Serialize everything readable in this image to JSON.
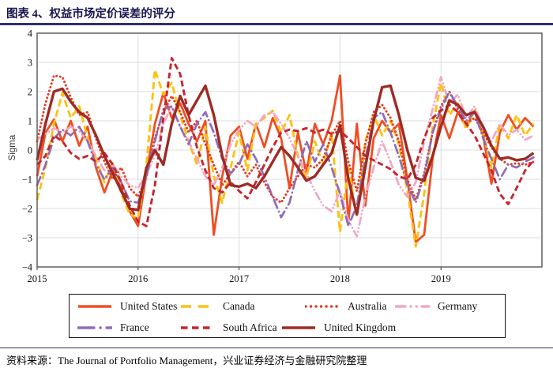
{
  "header": {
    "title": "图表 4、权益市场定价误差的评分"
  },
  "source": {
    "text": "资料来源：The Journal of Portfolio Management，兴业证券经济与金融研究院整理"
  },
  "chart_data": {
    "type": "line",
    "title": "图表 4、权益市场定价误差的评分",
    "xlabel": "",
    "ylabel": "Sigma",
    "ylim": [
      -4,
      4
    ],
    "grid": true,
    "legend_position": "bottom",
    "x_range": [
      2015,
      2020
    ],
    "points_per_year": 12,
    "x_start_year": 2015,
    "y_ticks": [
      {
        "value": 4,
        "label": "4"
      },
      {
        "value": 3,
        "label": "3"
      },
      {
        "value": 2,
        "label": "2"
      },
      {
        "value": 1,
        "label": "1"
      },
      {
        "value": 0,
        "label": "0"
      },
      {
        "value": -1,
        "label": "−1"
      },
      {
        "value": -2,
        "label": "−2"
      },
      {
        "value": -3,
        "label": "−3"
      },
      {
        "value": -4,
        "label": "−4"
      }
    ],
    "x_ticks": [
      {
        "value": 2015,
        "label": "2015"
      },
      {
        "value": 2016,
        "label": "2016"
      },
      {
        "value": 2017,
        "label": "2017"
      },
      {
        "value": 2018,
        "label": "2018"
      },
      {
        "value": 2019,
        "label": "2019"
      }
    ],
    "series": [
      {
        "name": "United States",
        "color": "#EF4E23",
        "style": "solid",
        "values": [
          -0.9,
          0.6,
          1.05,
          0.3,
          1.0,
          0.15,
          0.8,
          -0.6,
          -1.45,
          -0.7,
          -1.3,
          -2.1,
          -2.6,
          -0.8,
          0.9,
          1.95,
          1.1,
          1.6,
          0.9,
          0.3,
          1.0,
          -2.9,
          -0.9,
          0.5,
          0.8,
          -0.3,
          0.9,
          0.1,
          1.1,
          0.4,
          -1.3,
          0.6,
          -0.8,
          0.9,
          0.2,
          1.0,
          2.55,
          -2.5,
          0.9,
          -1.9,
          0.4,
          1.0,
          0.6,
          0.9,
          -1.0,
          -3.15,
          -2.9,
          -0.3,
          1.2,
          0.4,
          1.3,
          0.8,
          1.35,
          0.5,
          -1.15,
          0.6,
          1.2,
          0.7,
          1.1,
          0.8
        ]
      },
      {
        "name": "Canada",
        "color": "#FDC112",
        "style": "longdash",
        "values": [
          -1.7,
          -0.6,
          0.9,
          1.95,
          1.1,
          1.5,
          0.4,
          -0.3,
          -1.1,
          -0.4,
          -1.5,
          -2.2,
          -2.35,
          -0.5,
          2.75,
          1.9,
          2.3,
          1.2,
          0.3,
          -0.5,
          0.8,
          -0.9,
          -1.8,
          -0.6,
          0.6,
          -0.7,
          0.9,
          1.1,
          1.35,
          0.6,
          1.2,
          -0.2,
          -0.95,
          0.3,
          -0.5,
          0.6,
          -2.8,
          -0.6,
          -2.3,
          0.3,
          1.2,
          0.5,
          1.0,
          0.2,
          -1.4,
          -3.3,
          -1.5,
          0.8,
          2.3,
          1.2,
          1.6,
          0.7,
          1.4,
          0.6,
          -0.6,
          0.9,
          0.4,
          1.2,
          0.5,
          0.9
        ]
      },
      {
        "name": "Australia",
        "color": "#E63B1F",
        "style": "dot",
        "values": [
          0.3,
          1.6,
          2.55,
          2.5,
          1.8,
          1.2,
          1.3,
          0.4,
          -0.4,
          -1.0,
          -0.6,
          -1.3,
          -1.6,
          -0.9,
          0.4,
          1.3,
          1.85,
          1.3,
          0.6,
          1.0,
          0.2,
          -0.5,
          -1.2,
          -0.8,
          -0.4,
          -0.9,
          -0.5,
          -1.1,
          -1.6,
          -1.8,
          -1.3,
          -0.9,
          -0.5,
          -0.6,
          -0.3,
          0.5,
          1.0,
          -0.4,
          -1.4,
          0.2,
          1.3,
          1.55,
          1.1,
          0.3,
          -1.0,
          -1.7,
          -0.8,
          0.6,
          1.5,
          2.0,
          1.4,
          0.9,
          1.1,
          0.6,
          0.1,
          -0.3,
          -0.5,
          -0.45,
          -0.5,
          -0.4
        ]
      },
      {
        "name": "Germany",
        "color": "#F3A6C6",
        "style": "dashdotdot",
        "values": [
          0.35,
          0.55,
          0.75,
          0.6,
          0.8,
          0.65,
          0.3,
          -0.2,
          -0.7,
          -0.5,
          -0.9,
          -1.2,
          -1.3,
          -0.8,
          -0.2,
          0.9,
          1.5,
          0.8,
          0.3,
          -0.3,
          -0.9,
          -1.2,
          -0.6,
          0.2,
          0.7,
          1.0,
          0.8,
          1.2,
          1.3,
          0.9,
          0.4,
          -0.2,
          -0.8,
          -1.4,
          -1.9,
          -2.1,
          -1.4,
          -2.4,
          -2.95,
          -1.6,
          -0.6,
          0.3,
          -0.4,
          -1.2,
          -1.6,
          -1.1,
          0.3,
          1.4,
          2.5,
          1.6,
          1.9,
          1.1,
          1.5,
          0.8,
          0.3,
          0.9,
          0.5,
          0.7,
          0.35,
          0.5
        ]
      },
      {
        "name": "France",
        "color": "#8E6CB8",
        "style": "dashdot",
        "values": [
          -1.2,
          -0.5,
          0.4,
          0.7,
          0.5,
          0.8,
          0.3,
          -0.5,
          -1.0,
          -0.6,
          -1.1,
          -1.75,
          -1.8,
          -0.9,
          0.3,
          1.4,
          1.5,
          0.8,
          0.2,
          0.9,
          1.3,
          0.6,
          -0.3,
          -0.8,
          -0.5,
          0.2,
          -0.3,
          -0.9,
          -1.6,
          -2.3,
          -1.8,
          -0.7,
          0.3,
          -0.4,
          0.2,
          -0.6,
          -1.5,
          -2.6,
          -1.9,
          -0.3,
          1.1,
          1.3,
          0.6,
          -0.2,
          -1.2,
          -1.8,
          -0.9,
          0.6,
          1.4,
          2.0,
          1.5,
          1.0,
          1.3,
          0.4,
          -0.3,
          -1.0,
          -0.5,
          -0.6,
          -0.4,
          -0.25
        ]
      },
      {
        "name": "South Africa",
        "color": "#C4262E",
        "style": "dash",
        "values": [
          -0.5,
          -0.2,
          0.5,
          0.3,
          -0.1,
          -0.3,
          -0.2,
          -0.4,
          -0.1,
          -0.5,
          -1.1,
          -1.9,
          -2.45,
          -2.6,
          -1.2,
          1.1,
          3.15,
          2.6,
          1.2,
          0.1,
          -0.7,
          -1.3,
          -1.45,
          -1.1,
          -1.4,
          -1.65,
          -1.1,
          -0.5,
          0.1,
          0.6,
          0.7,
          0.65,
          0.75,
          0.6,
          0.7,
          0.55,
          0.65,
          0.4,
          0.1,
          -0.2,
          -0.35,
          -0.5,
          -0.65,
          -0.9,
          -1.0,
          -0.5,
          0.4,
          1.1,
          1.35,
          1.55,
          1.3,
          0.9,
          0.5,
          -0.1,
          -0.7,
          -1.5,
          -1.85,
          -1.3,
          -0.7,
          -0.35
        ]
      },
      {
        "name": "United Kingdom",
        "color": "#9E2B25",
        "style": "solid",
        "values": [
          -0.35,
          0.9,
          2.0,
          2.1,
          1.65,
          1.3,
          1.1,
          0.5,
          -0.2,
          -0.8,
          -1.4,
          -2.0,
          -2.05,
          -0.6,
          0.0,
          -0.5,
          0.9,
          1.85,
          1.2,
          1.7,
          2.2,
          1.2,
          -0.2,
          -1.2,
          -1.25,
          -1.15,
          -1.3,
          -0.9,
          -0.4,
          0.1,
          -0.2,
          -0.6,
          -1.05,
          -0.9,
          -0.5,
          -0.1,
          0.85,
          -1.0,
          -2.2,
          -0.6,
          1.0,
          2.15,
          2.2,
          1.2,
          0.0,
          -0.95,
          -1.05,
          -0.2,
          0.8,
          1.7,
          1.55,
          1.2,
          1.3,
          0.8,
          0.15,
          -0.3,
          -0.25,
          -0.35,
          -0.3,
          -0.1
        ]
      }
    ]
  }
}
